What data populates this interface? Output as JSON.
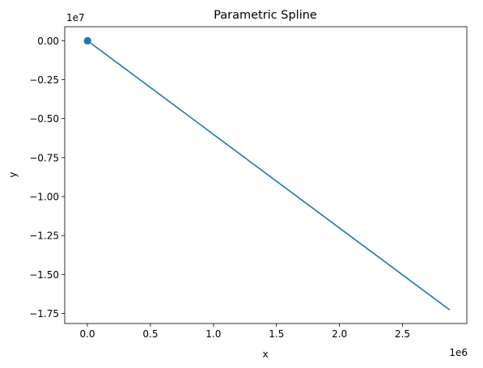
{
  "chart_data": {
    "type": "line",
    "title": "Parametric Spline",
    "xlabel": "x",
    "ylabel": "y",
    "x_offset_label": "1e6",
    "y_offset_label": "1e7",
    "xlim": [
      -180000,
      3010000
    ],
    "ylim": [
      -18150000,
      900000
    ],
    "x_ticks": [
      0,
      500000,
      1000000,
      1500000,
      2000000,
      2500000
    ],
    "x_tick_labels": [
      "0.0",
      "0.5",
      "1.0",
      "1.5",
      "2.0",
      "2.5"
    ],
    "y_ticks": [
      0,
      -2500000,
      -5000000,
      -7500000,
      -10000000,
      -12500000,
      -15000000,
      -17500000
    ],
    "y_tick_labels": [
      "0.00",
      "−0.25",
      "−0.50",
      "−0.75",
      "−1.00",
      "−1.25",
      "−1.50",
      "−1.75"
    ],
    "grid": false,
    "series": [
      {
        "x": [
          0,
          2870000
        ],
        "y": [
          0,
          -17250000
        ],
        "color": "#1f77b4"
      }
    ],
    "points": {
      "x": [
        0,
        1500,
        -1500,
        3000,
        500
      ],
      "y": [
        0,
        20000,
        -15000,
        5000,
        -30000
      ],
      "color": "#1f77b4"
    }
  }
}
